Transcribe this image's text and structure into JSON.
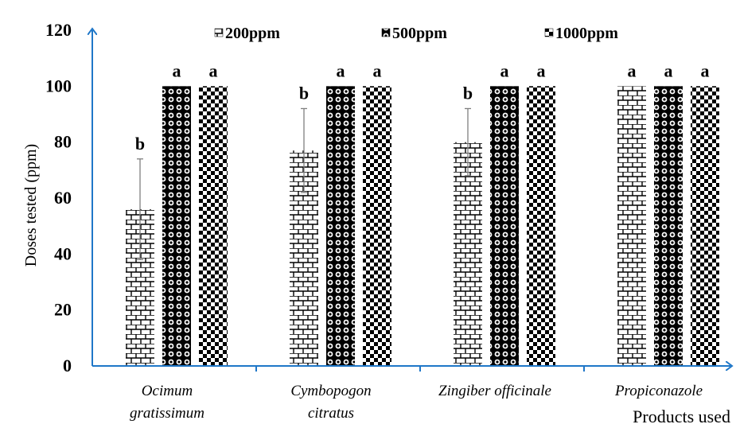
{
  "chart_data": {
    "type": "bar",
    "title": "",
    "ylabel": "Doses tested (ppm)",
    "xlabel": "Products used",
    "ylim": [
      0,
      120
    ],
    "yticks": [
      0,
      20,
      40,
      60,
      80,
      100,
      120
    ],
    "categories": [
      [
        "Ocimum",
        "gratissimum"
      ],
      [
        "Cymbopogon",
        "citratus"
      ],
      [
        "Zingiber officinale"
      ],
      [
        "Propiconazole"
      ]
    ],
    "series": [
      {
        "name": "200ppm",
        "pattern": "brick",
        "values": [
          56,
          77,
          80,
          100
        ],
        "errors": [
          18,
          15,
          12,
          null
        ],
        "letters": [
          "b",
          "b",
          "b",
          "a"
        ]
      },
      {
        "name": "500ppm",
        "pattern": "circles",
        "values": [
          100,
          100,
          100,
          100
        ],
        "errors": [
          null,
          null,
          null,
          null
        ],
        "letters": [
          "a",
          "a",
          "a",
          "a"
        ]
      },
      {
        "name": "1000ppm",
        "pattern": "checker",
        "values": [
          100,
          100,
          100,
          100
        ],
        "errors": [
          null,
          null,
          null,
          null
        ],
        "letters": [
          "a",
          "a",
          "a",
          "a"
        ]
      }
    ],
    "legend_position": "top",
    "grid": false,
    "colors": {
      "axis": "#1f77c8",
      "pattern": "#000000",
      "background": "#ffffff",
      "error_bar": "#7f7f7f"
    }
  }
}
